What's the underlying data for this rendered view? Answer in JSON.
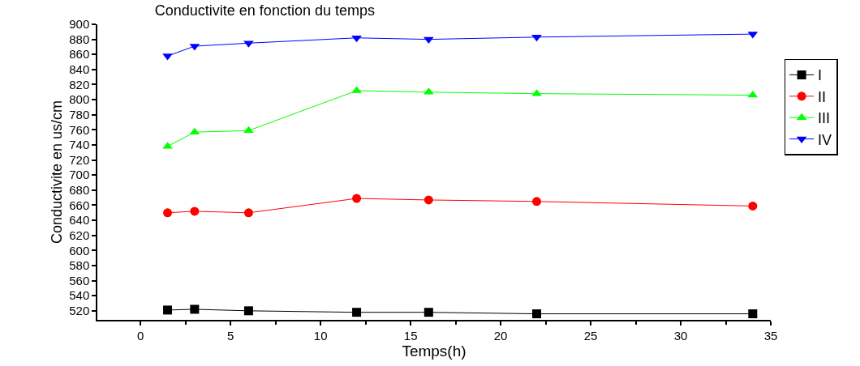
{
  "chart_data": {
    "type": "line",
    "title": "Conductivite en fonction du temps",
    "xlabel": "Temps(h)",
    "ylabel": "Conductivite en us/cm",
    "x": [
      1.5,
      3,
      6,
      12,
      16,
      22,
      34
    ],
    "series": [
      {
        "name": "I",
        "color": "#000000",
        "marker": "square",
        "values": [
          521,
          522,
          520,
          518,
          518,
          516,
          516
        ]
      },
      {
        "name": "II",
        "color": "#ff0000",
        "marker": "circle",
        "values": [
          650,
          652,
          650,
          669,
          667,
          665,
          659
        ]
      },
      {
        "name": "III",
        "color": "#00ff00",
        "marker": "triangle",
        "values": [
          738,
          757,
          759,
          812,
          810,
          808,
          806
        ]
      },
      {
        "name": "IV",
        "color": "#0000ff",
        "marker": "triangle-down",
        "values": [
          858,
          871,
          875,
          882,
          880,
          883,
          887
        ]
      }
    ],
    "xlim": [
      -2.4,
      35
    ],
    "xticks": [
      0,
      5,
      10,
      15,
      20,
      25,
      30,
      35
    ],
    "ylim": [
      508,
      900
    ],
    "yticks": [
      520,
      540,
      560,
      580,
      600,
      620,
      640,
      660,
      680,
      700,
      720,
      740,
      760,
      780,
      800,
      820,
      840,
      860,
      880,
      900
    ],
    "legend": "right"
  }
}
